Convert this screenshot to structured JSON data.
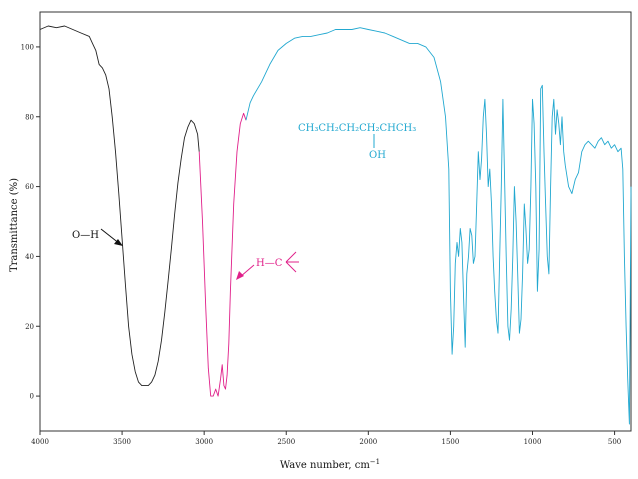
{
  "chart_data": {
    "type": "line",
    "xlabel": "Wave number, cm",
    "xlabel_exponent": "−1",
    "ylabel": "Transmittance (%)",
    "xlim": [
      4000,
      400
    ],
    "ylim": [
      -10,
      110
    ],
    "x_axis_reversed": true,
    "x_ticks": [
      4000,
      3500,
      3000,
      2500,
      2000,
      1500,
      1000,
      500
    ],
    "y_ticks": [
      0,
      20,
      40,
      60,
      80,
      100
    ],
    "grid": false,
    "colors": {
      "oh_region": "#222222",
      "ch_region": "#e0208a",
      "rest": "#22a8d0"
    },
    "series": [
      {
        "segment": "oh_region",
        "x": [
          4000,
          3950,
          3900,
          3850,
          3800,
          3750,
          3700,
          3680,
          3660,
          3640,
          3620,
          3600,
          3580,
          3560,
          3540,
          3520,
          3500,
          3480,
          3460,
          3440,
          3420,
          3400,
          3380,
          3360,
          3340,
          3320,
          3300,
          3280,
          3260,
          3240,
          3220,
          3200,
          3180,
          3160,
          3140,
          3120,
          3100,
          3080,
          3060,
          3040,
          3030
        ],
        "y": [
          105,
          106,
          105.5,
          106,
          105,
          104,
          103,
          101,
          99,
          95,
          94,
          92,
          88,
          80,
          70,
          58,
          45,
          32,
          20,
          12,
          7,
          4,
          3,
          3,
          3,
          4,
          6,
          10,
          16,
          24,
          33,
          42,
          52,
          61,
          68,
          74,
          77,
          79,
          78,
          75,
          70
        ]
      },
      {
        "segment": "ch_region",
        "x": [
          3030,
          3010,
          2990,
          2975,
          2960,
          2945,
          2930,
          2915,
          2900,
          2890,
          2880,
          2870,
          2860,
          2850,
          2840,
          2820,
          2800,
          2780,
          2760,
          2745
        ],
        "y": [
          70,
          50,
          25,
          8,
          0,
          0,
          2,
          0,
          5,
          9,
          3,
          2,
          6,
          15,
          30,
          55,
          70,
          78,
          81,
          79
        ]
      },
      {
        "segment": "rest",
        "x": [
          2745,
          2720,
          2700,
          2650,
          2600,
          2550,
          2500,
          2450,
          2400,
          2350,
          2300,
          2250,
          2200,
          2150,
          2100,
          2050,
          2000,
          1950,
          1900,
          1850,
          1800,
          1750,
          1700,
          1650,
          1600,
          1560,
          1530,
          1510,
          1500,
          1490,
          1480,
          1470,
          1460,
          1450,
          1440,
          1430,
          1420,
          1410,
          1400,
          1390,
          1380,
          1370,
          1360,
          1350,
          1340,
          1330,
          1320,
          1310,
          1300,
          1290,
          1280,
          1270,
          1260,
          1250,
          1240,
          1230,
          1220,
          1210,
          1200,
          1190,
          1180,
          1170,
          1160,
          1150,
          1140,
          1130,
          1120,
          1110,
          1100,
          1090,
          1080,
          1070,
          1060,
          1050,
          1040,
          1030,
          1020,
          1010,
          1000,
          990,
          980,
          970,
          960,
          950,
          940,
          930,
          920,
          910,
          900,
          890,
          880,
          870,
          860,
          850,
          840,
          830,
          820,
          810,
          800,
          780,
          760,
          740,
          720,
          700,
          680,
          660,
          640,
          620,
          600,
          580,
          560,
          540,
          520,
          500,
          480,
          460,
          450,
          440,
          430,
          420,
          410,
          400
        ],
        "y": [
          79,
          84,
          86,
          90,
          95,
          99,
          101,
          102.5,
          103,
          103,
          103.5,
          104,
          105,
          105,
          105,
          105.5,
          105,
          104.5,
          104,
          103,
          102,
          101,
          101,
          100,
          97,
          90,
          80,
          65,
          30,
          12,
          20,
          38,
          44,
          40,
          48,
          44,
          28,
          14,
          35,
          40,
          48,
          46,
          38,
          40,
          55,
          70,
          62,
          68,
          80,
          85,
          75,
          60,
          65,
          55,
          40,
          30,
          22,
          18,
          40,
          60,
          85,
          62,
          40,
          20,
          16,
          25,
          40,
          60,
          50,
          35,
          18,
          22,
          35,
          55,
          48,
          38,
          42,
          60,
          85,
          78,
          60,
          30,
          42,
          88,
          89,
          70,
          55,
          40,
          35,
          60,
          80,
          85,
          75,
          82,
          78,
          72,
          80,
          70,
          66,
          60,
          58,
          62,
          64,
          70,
          72,
          73,
          72,
          71,
          73,
          74,
          72,
          73,
          71,
          72,
          70,
          71,
          65,
          40,
          20,
          5,
          -8,
          60
        ]
      }
    ],
    "annotations": {
      "oh_label": "O—H",
      "ch_label_h": "H—C",
      "formula_main": "CH₃CH₂CH₂CH₂CHCH₃",
      "formula_sub": "OH"
    }
  }
}
